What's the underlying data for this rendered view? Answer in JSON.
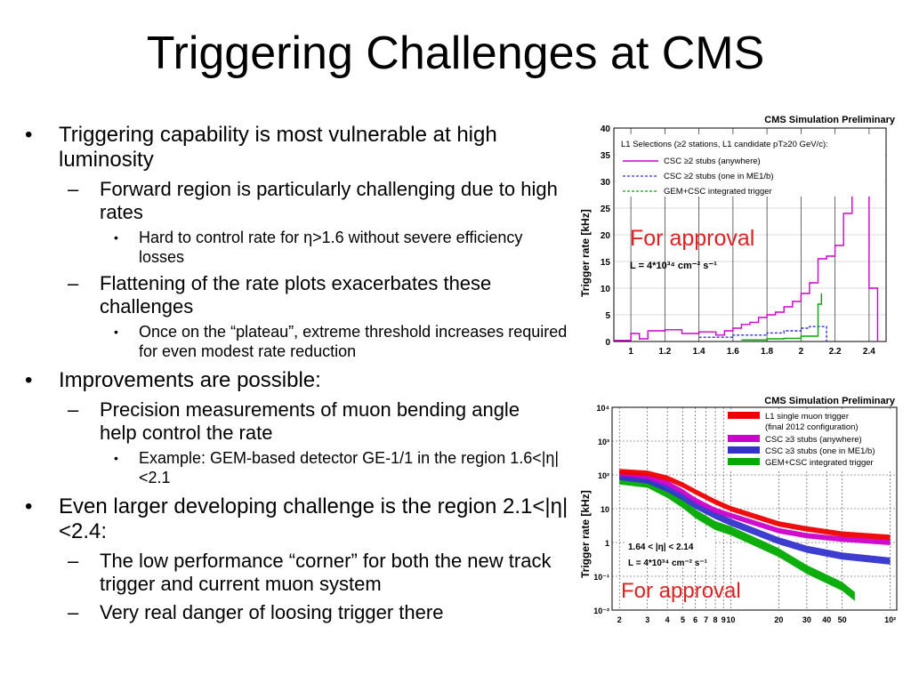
{
  "slide": {
    "title": "Triggering Challenges at CMS"
  },
  "bullets": {
    "b1": "Triggering capability is most vulnerable at high luminosity",
    "b1_s1": "Forward region is particularly challenging due to high rates",
    "b1_s1_t1": "Hard to control rate for η>1.6 without severe efficiency losses",
    "b1_s2": "Flattening of the rate plots exacerbates these challenges",
    "b1_s2_t1": "Once on the “plateau”, extreme threshold increases required for even modest rate reduction",
    "b2": "Improvements are possible:",
    "b2_s1": "Precision measurements of muon bending angle help control the rate",
    "b2_s1_t1": "Example: GEM-based detector GE-1/1 in the region 1.6<|η|<2.1",
    "b3": "Even larger developing challenge is the region 2.1<|η|<2.4:",
    "b3_s1": "The low performance “corner” for both the new track trigger and current muon system",
    "b3_s2": "Very real danger of loosing trigger there"
  },
  "plots": {
    "top": {
      "header": "CMS Simulation Preliminary",
      "ylabel": "Trigger rate [kHz]",
      "selection": "L1 Selections (≥2 stations, L1 candidate pT≥20 GeV/c):",
      "legend": [
        "CSC ≥2 stubs (anywhere)",
        "CSC ≥2 stubs (one in ME1/b)",
        "GEM+CSC integrated trigger"
      ],
      "stamp": "For approval",
      "lumi": "L = 4*10³⁴ cm⁻² s⁻¹",
      "yticks": [
        "0",
        "5",
        "10",
        "15",
        "20",
        "25",
        "30",
        "35",
        "40"
      ],
      "xticks": [
        "1",
        "1.2",
        "1.4",
        "1.6",
        "1.8",
        "2",
        "2.2",
        "2.4"
      ]
    },
    "bottom": {
      "header": "CMS Simulation Preliminary",
      "ylabel": "Trigger rate [kHz]",
      "legend": [
        "L1 single muon trigger",
        "(final 2012 configuration)",
        "CSC ≥3 stubs (anywhere)",
        "CSC ≥3 stubs (one in ME1/b)",
        "GEM+CSC integrated trigger"
      ],
      "stamp": "For approval",
      "eta": "1.64 < |η| < 2.14",
      "lumi": "L = 4*10³⁴ cm⁻² s⁻¹",
      "yticks": [
        "10⁴",
        "10³",
        "10²",
        "10",
        "1",
        "10⁻¹",
        "10⁻²"
      ],
      "xticks": [
        "2",
        "3",
        "4",
        "5",
        "6",
        "7",
        "8",
        "9",
        "10",
        "20",
        "30",
        "40",
        "50",
        "10²"
      ]
    }
  },
  "colors": {
    "magenta": "#cc00cc",
    "blue": "#3333cc",
    "green": "#00aa00",
    "red": "#ee0000",
    "stamp": "#dd2222"
  }
}
